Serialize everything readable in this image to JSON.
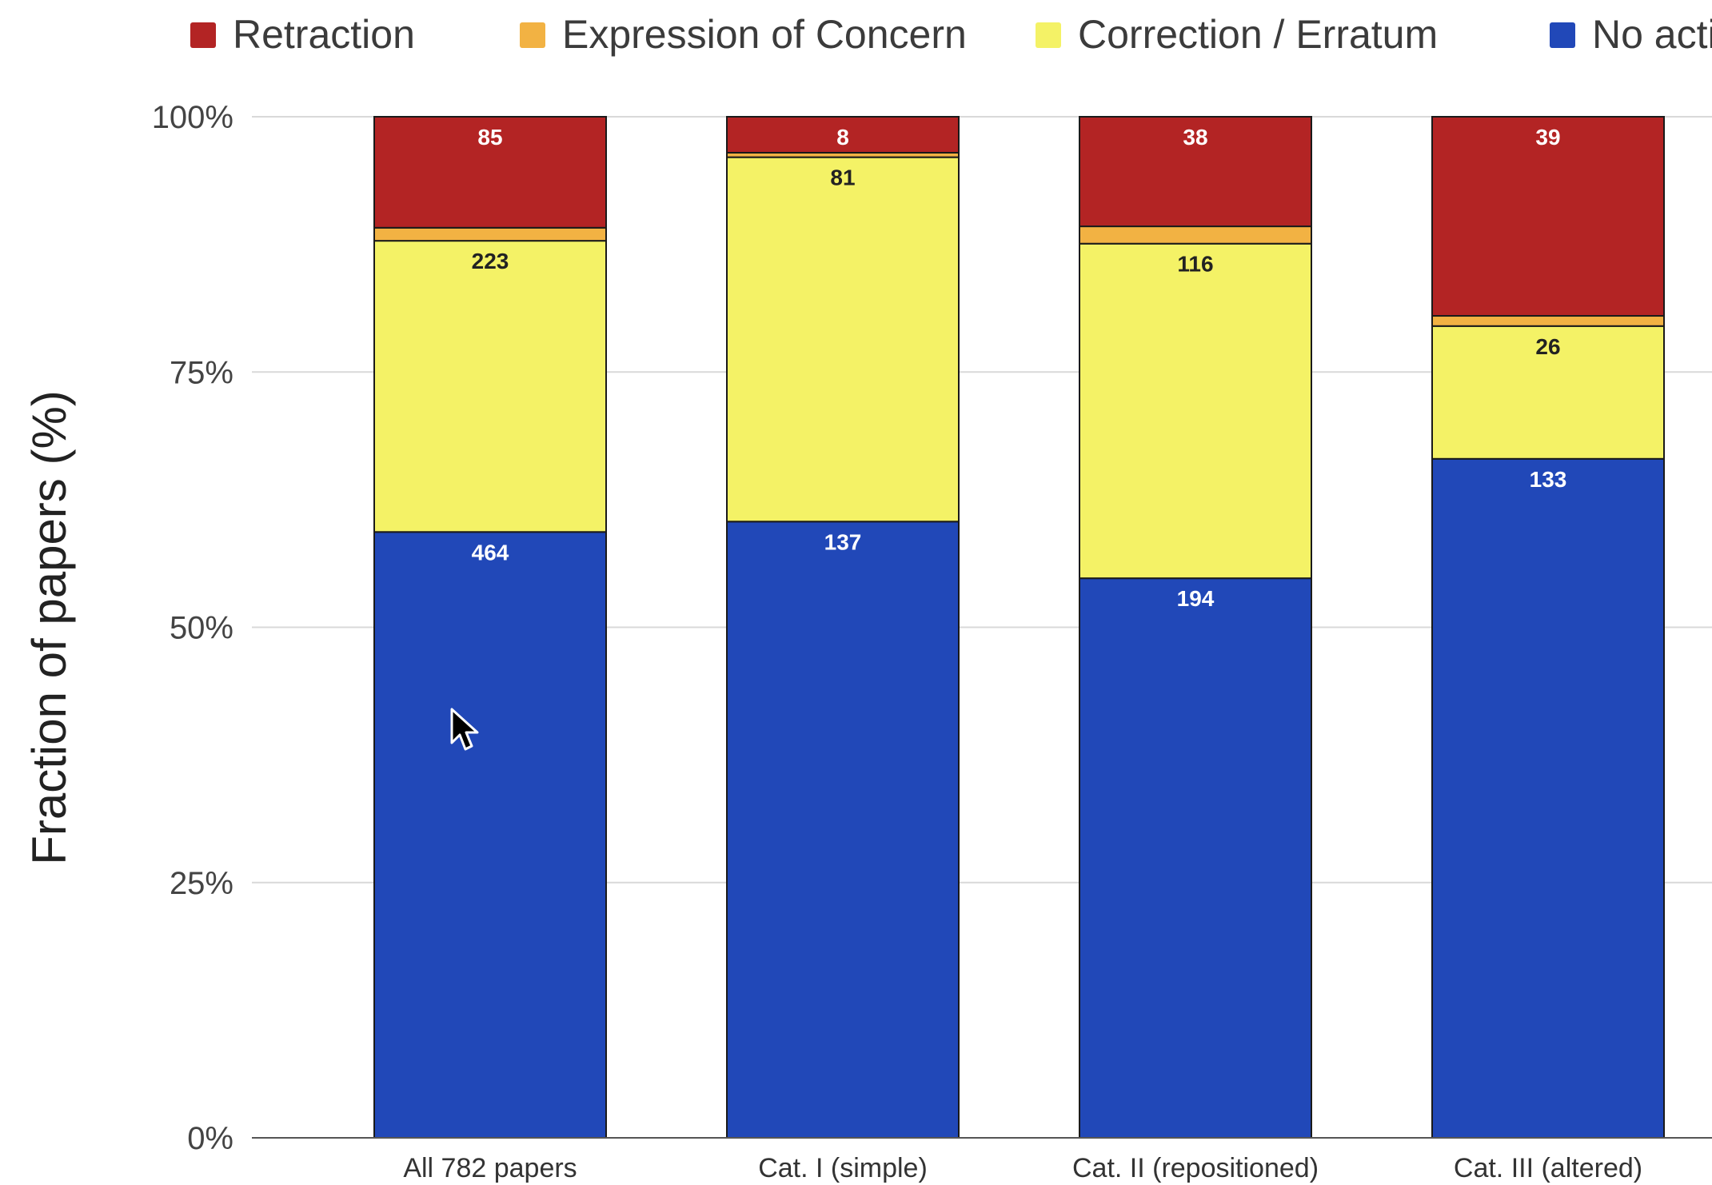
{
  "chart_data": {
    "type": "bar",
    "stacked": true,
    "normalized": true,
    "title": "",
    "xlabel": "",
    "ylabel": "Fraction of papers (%)",
    "ylim": [
      0,
      100
    ],
    "yticks": [
      "0%",
      "25%",
      "50%",
      "75%",
      "100%"
    ],
    "grid": true,
    "legend_position": "top",
    "categories": [
      "All 782 papers",
      "Cat. I (simple)",
      "Cat. II (repositioned)",
      "Cat. III (altered)"
    ],
    "series": [
      {
        "name": "No action",
        "color": "#2148b8",
        "label_color": "#ffffff",
        "values": [
          464,
          137,
          194,
          133
        ],
        "labels": [
          "464",
          "137",
          "194",
          "133"
        ]
      },
      {
        "name": "Correction / Erratum",
        "color": "#f4f266",
        "label_color": "#222222",
        "values": [
          223,
          81,
          116,
          26
        ],
        "labels": [
          "223",
          "81",
          "116",
          "26"
        ]
      },
      {
        "name": "Expression of Concern",
        "color": "#f2b243",
        "label_color": "#222222",
        "values": [
          10,
          1,
          6,
          2
        ],
        "labels": [
          "",
          "",
          "",
          ""
        ]
      },
      {
        "name": "Retraction",
        "color": "#b32424",
        "label_color": "#ffffff",
        "values": [
          85,
          8,
          38,
          39
        ],
        "labels": [
          "85",
          "8",
          "38",
          "39"
        ]
      }
    ],
    "legend_order": [
      "Retraction",
      "Expression of Concern",
      "Correction / Erratum",
      "No action"
    ]
  },
  "icons": {
    "cursor": "mouse-pointer-icon"
  }
}
